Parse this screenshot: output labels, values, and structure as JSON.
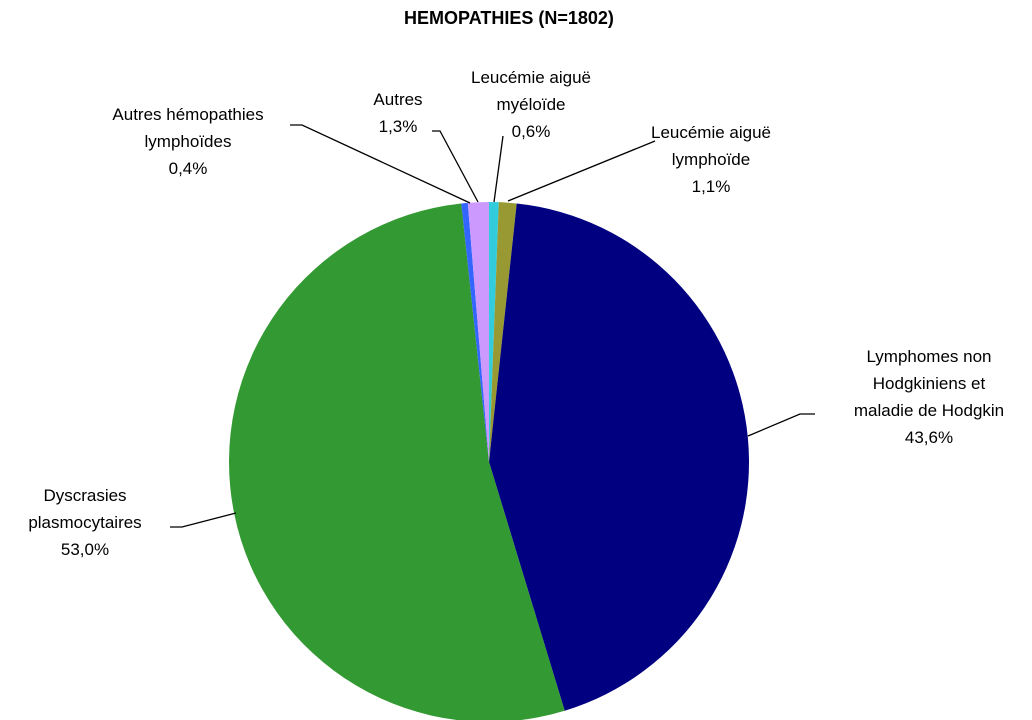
{
  "chart_data": {
    "type": "pie",
    "title": "HEMOPATHIES (N=1802)",
    "categories": [
      "Leucémie aiguë\nmyéloïde",
      "Leucémie aiguë\nlymphoïde",
      "Lymphomes non\nHodgkiniens et\nmaladie de Hodgkin",
      "Dyscrasies\nplasmocytaires",
      "Autres hémopathies\nlymphoïdes",
      "Autres"
    ],
    "values": [
      0.6,
      1.1,
      43.6,
      53.0,
      0.4,
      1.3
    ],
    "value_labels": [
      "0,6%",
      "1,1%",
      "43,6%",
      "53,0%",
      "0,4%",
      "1,3%"
    ],
    "colors": [
      "#33ccdd",
      "#999933",
      "#000080",
      "#339933",
      "#3366ff",
      "#cc99ff"
    ]
  }
}
